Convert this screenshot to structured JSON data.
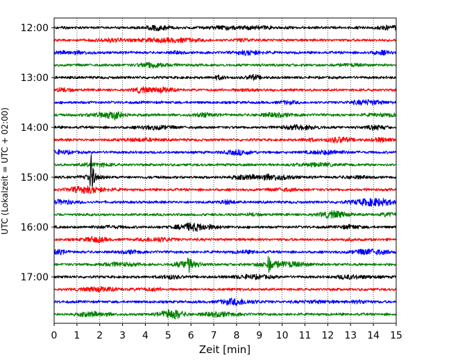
{
  "chart_data": {
    "type": "line",
    "title": "",
    "xlabel": "Zeit  [min]",
    "ylabel": "UTC (Lokalzeit = UTC + 02:00)",
    "xlim": [
      0,
      15
    ],
    "xticks": [
      0,
      1,
      2,
      3,
      4,
      5,
      6,
      7,
      8,
      9,
      10,
      11,
      12,
      13,
      14,
      15
    ],
    "xtick_labels": [
      "0",
      "1",
      "2",
      "3",
      "4",
      "5",
      "6",
      "7",
      "8",
      "9",
      "10",
      "11",
      "12",
      "13",
      "14",
      "15"
    ],
    "ytick_labels": [
      "12:00",
      "13:00",
      "14:00",
      "15:00",
      "16:00",
      "17:00"
    ],
    "ytick_rows": [
      0,
      4,
      8,
      12,
      16,
      20
    ],
    "vertical_grid": "dotted",
    "colors": [
      "#000000",
      "#ff0000",
      "#0000ff",
      "#008000"
    ],
    "traces": [
      {
        "start": "12:00",
        "color": "#000000"
      },
      {
        "start": "12:15",
        "color": "#ff0000"
      },
      {
        "start": "12:30",
        "color": "#0000ff"
      },
      {
        "start": "12:45",
        "color": "#008000"
      },
      {
        "start": "13:00",
        "color": "#000000"
      },
      {
        "start": "13:15",
        "color": "#ff0000"
      },
      {
        "start": "13:30",
        "color": "#0000ff"
      },
      {
        "start": "13:45",
        "color": "#008000"
      },
      {
        "start": "14:00",
        "color": "#000000"
      },
      {
        "start": "14:15",
        "color": "#ff0000"
      },
      {
        "start": "14:30",
        "color": "#0000ff"
      },
      {
        "start": "14:45",
        "color": "#008000"
      },
      {
        "start": "15:00",
        "color": "#000000"
      },
      {
        "start": "15:15",
        "color": "#ff0000"
      },
      {
        "start": "15:30",
        "color": "#0000ff"
      },
      {
        "start": "15:45",
        "color": "#008000"
      },
      {
        "start": "16:00",
        "color": "#000000"
      },
      {
        "start": "16:15",
        "color": "#ff0000"
      },
      {
        "start": "16:30",
        "color": "#0000ff"
      },
      {
        "start": "16:45",
        "color": "#008000"
      },
      {
        "start": "17:00",
        "color": "#000000"
      },
      {
        "start": "17:15",
        "color": "#ff0000"
      },
      {
        "start": "17:30",
        "color": "#0000ff"
      },
      {
        "start": "17:45",
        "color": "#008000"
      }
    ],
    "events": [
      {
        "start": "13:45",
        "minute": 2.7,
        "amplitude": "small"
      },
      {
        "start": "15:00",
        "minute": 1.6,
        "amplitude": "large"
      },
      {
        "start": "16:45",
        "minute": 5.9,
        "amplitude": "medium"
      },
      {
        "start": "16:45",
        "minute": 9.4,
        "amplitude": "small"
      }
    ]
  }
}
